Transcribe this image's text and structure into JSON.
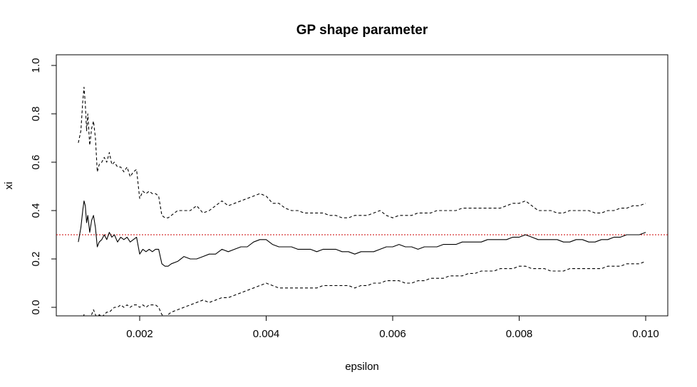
{
  "chart_data": {
    "type": "line",
    "title": "GP shape parameter",
    "xlabel": "epsilon",
    "ylabel": "xi",
    "xlim": [
      0.001,
      0.01
    ],
    "ylim": [
      0.0,
      1.0
    ],
    "xticks": [
      "0.002",
      "0.004",
      "0.006",
      "0.008",
      "0.010"
    ],
    "yticks": [
      "0.0",
      "0.2",
      "0.4",
      "0.6",
      "0.8",
      "1.0"
    ],
    "reference_line": {
      "y": 0.3,
      "color": "#cc0000",
      "style": "dotted"
    },
    "grid": false,
    "series": [
      {
        "style": "solid",
        "color": "#000000",
        "x": [
          0.00103,
          0.00107,
          0.0011,
          0.00112,
          0.00114,
          0.00116,
          0.00118,
          0.00121,
          0.00124,
          0.00127,
          0.0013,
          0.00133,
          0.00136,
          0.0014,
          0.00144,
          0.00148,
          0.00152,
          0.00156,
          0.0016,
          0.00165,
          0.0017,
          0.00175,
          0.0018,
          0.00185,
          0.0019,
          0.00195,
          0.002,
          0.00205,
          0.0021,
          0.00215,
          0.0022,
          0.00225,
          0.0023,
          0.00235,
          0.0024,
          0.00245,
          0.0025,
          0.0026,
          0.0027,
          0.0028,
          0.0029,
          0.003,
          0.0031,
          0.0032,
          0.0033,
          0.0034,
          0.0035,
          0.0036,
          0.0037,
          0.0038,
          0.0039,
          0.004,
          0.0041,
          0.0042,
          0.0043,
          0.0044,
          0.0045,
          0.0046,
          0.0047,
          0.0048,
          0.0049,
          0.005,
          0.0051,
          0.0052,
          0.0053,
          0.0054,
          0.0055,
          0.0056,
          0.0057,
          0.0058,
          0.0059,
          0.006,
          0.0061,
          0.0062,
          0.0063,
          0.0064,
          0.0065,
          0.0066,
          0.0067,
          0.0068,
          0.0069,
          0.007,
          0.0071,
          0.0072,
          0.0073,
          0.0074,
          0.0075,
          0.0076,
          0.0077,
          0.0078,
          0.0079,
          0.008,
          0.0081,
          0.0082,
          0.0083,
          0.0084,
          0.0085,
          0.0086,
          0.0087,
          0.0088,
          0.0089,
          0.009,
          0.0091,
          0.0092,
          0.0093,
          0.0094,
          0.0095,
          0.0096,
          0.0097,
          0.0098,
          0.0099,
          0.01
        ],
        "y": [
          0.27,
          0.33,
          0.4,
          0.44,
          0.42,
          0.35,
          0.38,
          0.31,
          0.36,
          0.38,
          0.33,
          0.25,
          0.27,
          0.28,
          0.3,
          0.28,
          0.31,
          0.29,
          0.3,
          0.27,
          0.29,
          0.28,
          0.29,
          0.27,
          0.28,
          0.29,
          0.22,
          0.24,
          0.23,
          0.24,
          0.23,
          0.24,
          0.24,
          0.18,
          0.17,
          0.17,
          0.18,
          0.19,
          0.21,
          0.2,
          0.2,
          0.21,
          0.22,
          0.22,
          0.24,
          0.23,
          0.24,
          0.25,
          0.25,
          0.27,
          0.28,
          0.28,
          0.26,
          0.25,
          0.25,
          0.25,
          0.24,
          0.24,
          0.24,
          0.23,
          0.24,
          0.24,
          0.24,
          0.23,
          0.23,
          0.22,
          0.23,
          0.23,
          0.23,
          0.24,
          0.25,
          0.25,
          0.26,
          0.25,
          0.25,
          0.24,
          0.25,
          0.25,
          0.25,
          0.26,
          0.26,
          0.26,
          0.27,
          0.27,
          0.27,
          0.27,
          0.28,
          0.28,
          0.28,
          0.28,
          0.29,
          0.29,
          0.3,
          0.29,
          0.28,
          0.28,
          0.28,
          0.28,
          0.27,
          0.27,
          0.28,
          0.28,
          0.27,
          0.27,
          0.28,
          0.28,
          0.29,
          0.29,
          0.3,
          0.3,
          0.3,
          0.31
        ]
      },
      {
        "style": "dashed",
        "color": "#000000",
        "x": [
          0.00103,
          0.00107,
          0.0011,
          0.00112,
          0.00114,
          0.00116,
          0.00118,
          0.00121,
          0.00124,
          0.00127,
          0.0013,
          0.00133,
          0.00136,
          0.0014,
          0.00144,
          0.00148,
          0.00152,
          0.00156,
          0.0016,
          0.00165,
          0.0017,
          0.00175,
          0.0018,
          0.00185,
          0.0019,
          0.00195,
          0.002,
          0.00205,
          0.0021,
          0.00215,
          0.0022,
          0.00225,
          0.0023,
          0.00235,
          0.0024,
          0.00245,
          0.0025,
          0.0026,
          0.0027,
          0.0028,
          0.0029,
          0.003,
          0.0031,
          0.0032,
          0.0033,
          0.0034,
          0.0035,
          0.0036,
          0.0037,
          0.0038,
          0.0039,
          0.004,
          0.0041,
          0.0042,
          0.0043,
          0.0044,
          0.0045,
          0.0046,
          0.0047,
          0.0048,
          0.0049,
          0.005,
          0.0051,
          0.0052,
          0.0053,
          0.0054,
          0.0055,
          0.0056,
          0.0057,
          0.0058,
          0.0059,
          0.006,
          0.0061,
          0.0062,
          0.0063,
          0.0064,
          0.0065,
          0.0066,
          0.0067,
          0.0068,
          0.0069,
          0.007,
          0.0071,
          0.0072,
          0.0073,
          0.0074,
          0.0075,
          0.0076,
          0.0077,
          0.0078,
          0.0079,
          0.008,
          0.0081,
          0.0082,
          0.0083,
          0.0084,
          0.0085,
          0.0086,
          0.0087,
          0.0088,
          0.0089,
          0.009,
          0.0091,
          0.0092,
          0.0093,
          0.0094,
          0.0095,
          0.0096,
          0.0097,
          0.0098,
          0.0099,
          0.01
        ],
        "y": [
          0.68,
          0.73,
          0.85,
          0.91,
          0.84,
          0.73,
          0.8,
          0.67,
          0.74,
          0.77,
          0.7,
          0.56,
          0.59,
          0.6,
          0.62,
          0.6,
          0.64,
          0.59,
          0.6,
          0.58,
          0.58,
          0.56,
          0.58,
          0.54,
          0.56,
          0.57,
          0.45,
          0.48,
          0.47,
          0.48,
          0.47,
          0.47,
          0.46,
          0.38,
          0.37,
          0.37,
          0.38,
          0.4,
          0.4,
          0.4,
          0.42,
          0.39,
          0.4,
          0.42,
          0.44,
          0.42,
          0.43,
          0.44,
          0.45,
          0.46,
          0.47,
          0.46,
          0.43,
          0.43,
          0.41,
          0.4,
          0.4,
          0.39,
          0.39,
          0.39,
          0.39,
          0.38,
          0.38,
          0.37,
          0.37,
          0.38,
          0.38,
          0.38,
          0.39,
          0.4,
          0.38,
          0.37,
          0.38,
          0.38,
          0.38,
          0.39,
          0.39,
          0.39,
          0.4,
          0.4,
          0.4,
          0.4,
          0.41,
          0.41,
          0.41,
          0.41,
          0.41,
          0.41,
          0.41,
          0.42,
          0.43,
          0.43,
          0.44,
          0.42,
          0.4,
          0.4,
          0.4,
          0.39,
          0.39,
          0.4,
          0.4,
          0.4,
          0.4,
          0.39,
          0.39,
          0.4,
          0.4,
          0.41,
          0.41,
          0.42,
          0.42,
          0.43
        ]
      },
      {
        "style": "dashed",
        "color": "#000000",
        "x": [
          0.00103,
          0.00107,
          0.0011,
          0.00112,
          0.00114,
          0.00116,
          0.00118,
          0.00121,
          0.00124,
          0.00127,
          0.0013,
          0.00133,
          0.00136,
          0.0014,
          0.00144,
          0.00148,
          0.00152,
          0.00156,
          0.0016,
          0.00165,
          0.0017,
          0.00175,
          0.0018,
          0.00185,
          0.0019,
          0.00195,
          0.002,
          0.00205,
          0.0021,
          0.00215,
          0.0022,
          0.00225,
          0.0023,
          0.00235,
          0.0024,
          0.00245,
          0.0025,
          0.0026,
          0.0027,
          0.0028,
          0.0029,
          0.003,
          0.0031,
          0.0032,
          0.0033,
          0.0034,
          0.0035,
          0.0036,
          0.0037,
          0.0038,
          0.0039,
          0.004,
          0.0041,
          0.0042,
          0.0043,
          0.0044,
          0.0045,
          0.0046,
          0.0047,
          0.0048,
          0.0049,
          0.005,
          0.0051,
          0.0052,
          0.0053,
          0.0054,
          0.0055,
          0.0056,
          0.0057,
          0.0058,
          0.0059,
          0.006,
          0.0061,
          0.0062,
          0.0063,
          0.0064,
          0.0065,
          0.0066,
          0.0067,
          0.0068,
          0.0069,
          0.007,
          0.0071,
          0.0072,
          0.0073,
          0.0074,
          0.0075,
          0.0076,
          0.0077,
          0.0078,
          0.0079,
          0.008,
          0.0081,
          0.0082,
          0.0083,
          0.0084,
          0.0085,
          0.0086,
          0.0087,
          0.0088,
          0.0089,
          0.009,
          0.0091,
          0.0092,
          0.0093,
          0.0094,
          0.0095,
          0.0096,
          0.0097,
          0.0098,
          0.0099,
          0.01
        ],
        "y": [
          -0.14,
          -0.1,
          -0.05,
          -0.03,
          -0.04,
          -0.04,
          -0.05,
          -0.04,
          -0.03,
          -0.01,
          -0.03,
          -0.05,
          -0.03,
          -0.04,
          -0.03,
          -0.02,
          -0.02,
          -0.01,
          0.0,
          0.0,
          0.01,
          0.0,
          0.01,
          0.0,
          0.01,
          0.01,
          0.0,
          0.01,
          0.0,
          0.01,
          0.01,
          0.01,
          0.0,
          -0.03,
          -0.04,
          -0.03,
          -0.02,
          -0.01,
          0.0,
          0.01,
          0.02,
          0.03,
          0.02,
          0.03,
          0.04,
          0.04,
          0.05,
          0.06,
          0.07,
          0.08,
          0.09,
          0.1,
          0.09,
          0.08,
          0.08,
          0.08,
          0.08,
          0.08,
          0.08,
          0.08,
          0.09,
          0.09,
          0.09,
          0.09,
          0.09,
          0.08,
          0.09,
          0.09,
          0.1,
          0.1,
          0.11,
          0.11,
          0.11,
          0.1,
          0.1,
          0.11,
          0.11,
          0.12,
          0.12,
          0.12,
          0.13,
          0.13,
          0.13,
          0.14,
          0.14,
          0.15,
          0.15,
          0.15,
          0.16,
          0.16,
          0.16,
          0.17,
          0.17,
          0.16,
          0.16,
          0.16,
          0.15,
          0.15,
          0.15,
          0.16,
          0.16,
          0.16,
          0.16,
          0.16,
          0.16,
          0.17,
          0.17,
          0.17,
          0.18,
          0.18,
          0.18,
          0.19
        ]
      }
    ]
  }
}
